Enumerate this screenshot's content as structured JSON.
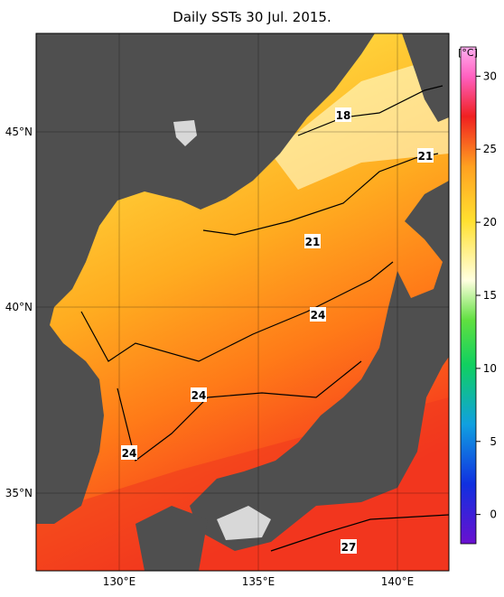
{
  "map": {
    "title": "Daily SSTs 30 Jul. 2015.",
    "lon_labels": [
      "130°E",
      "135°E",
      "140°E"
    ],
    "lat_labels": [
      "45°N",
      "40°N",
      "35°N"
    ],
    "contour_labels": [
      18,
      21,
      21,
      24,
      24,
      24,
      27
    ],
    "colorbar": {
      "unit": "[°C]",
      "range": [
        -2,
        32
      ],
      "ticks": [
        0,
        5,
        10,
        15,
        20,
        25,
        30
      ]
    }
  }
}
